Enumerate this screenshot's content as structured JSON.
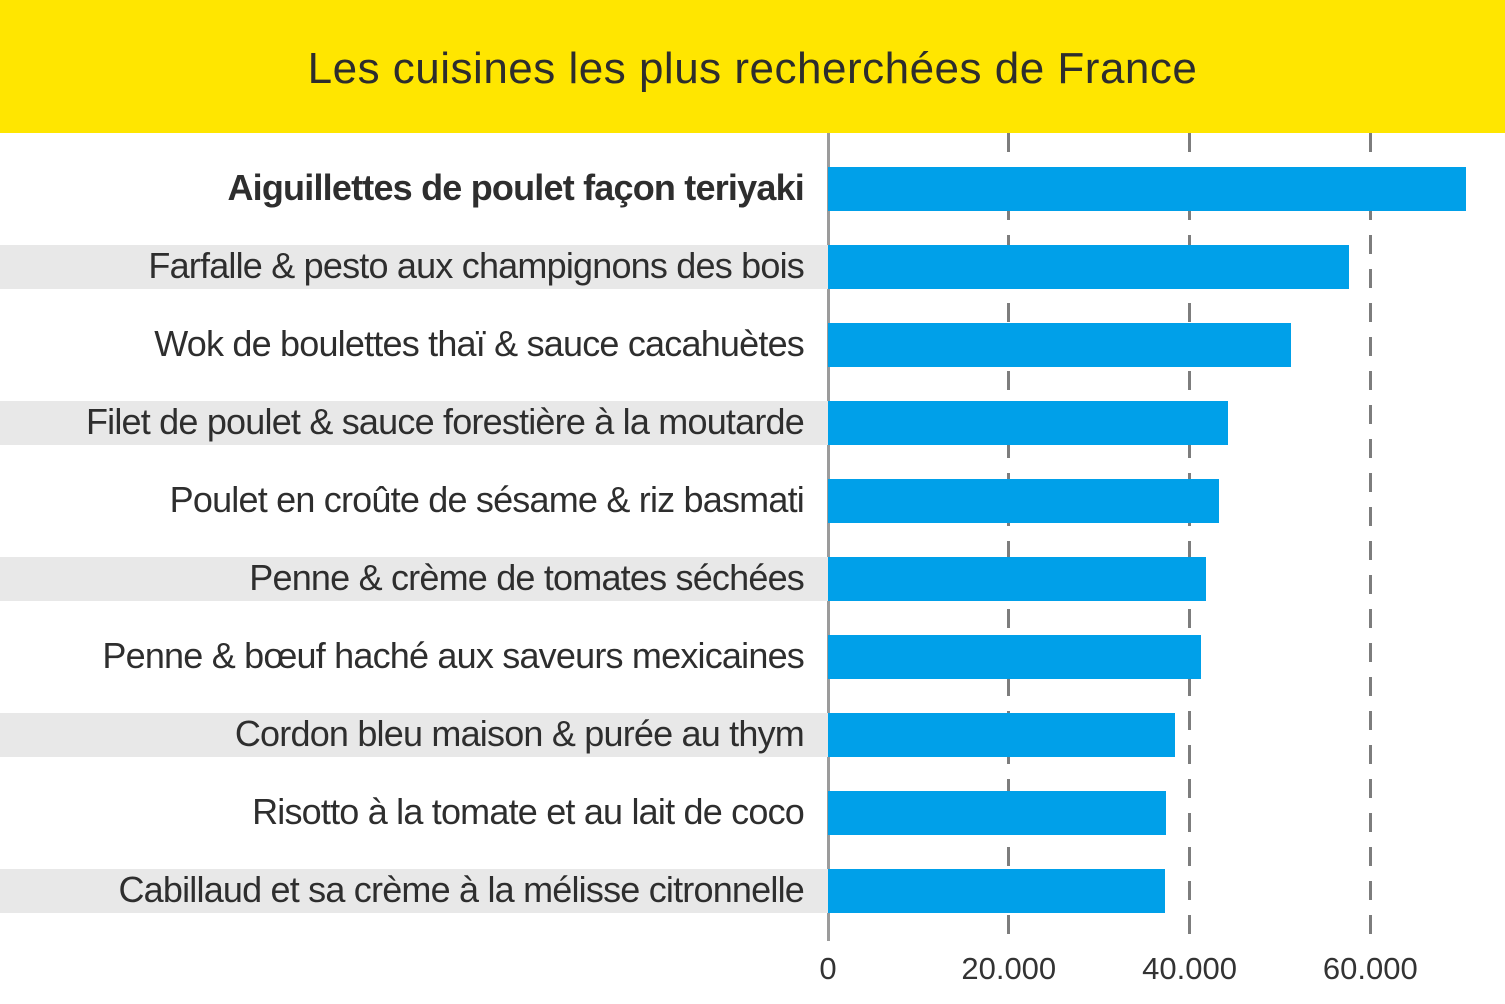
{
  "header": {
    "title": "Les cuisines les plus recherchées de France",
    "background": "#FFE600",
    "text_color": "#2D2D2D"
  },
  "chart_data": {
    "type": "bar",
    "orientation": "horizontal",
    "title": "Les cuisines les plus recherchées de France",
    "categories": [
      "Aiguillettes de poulet façon teriyaki",
      "Farfalle & pesto aux champignons des bois",
      "Wok de boulettes thaï & sauce cacahuètes",
      "Filet de poulet & sauce forestière à la moutarde",
      "Poulet en croûte de sésame & riz basmati",
      "Penne & crème de tomates séchées",
      "Penne & bœuf haché aux saveurs mexicaines",
      "Cordon bleu maison & purée au thym",
      "Risotto à la tomate et au lait de coco",
      "Cabillaud et sa crème à la mélisse citronnelle"
    ],
    "values": [
      70600,
      57600,
      51200,
      44200,
      43300,
      41800,
      41300,
      38400,
      37400,
      37300
    ],
    "emphasized_category_index": 0,
    "striped_row_indexes": [
      1,
      3,
      5,
      7,
      9
    ],
    "xlabel": "",
    "ylabel": "",
    "xlim": [
      0,
      74900
    ],
    "xticks": [
      {
        "value": 0,
        "label": "0"
      },
      {
        "value": 20000,
        "label": "20.000"
      },
      {
        "value": 40000,
        "label": "40.000"
      },
      {
        "value": 60000,
        "label": "60.000"
      }
    ],
    "grid": "dashed-vertical",
    "legend": "none",
    "bar_color": "#00A0E9",
    "stripe_color": "#E8E8E8",
    "label_color": "#2E2E2E",
    "axis_color": "#9B9B9B",
    "gridline_color": "#7D7D7D",
    "tick_label_color": "#333333"
  }
}
